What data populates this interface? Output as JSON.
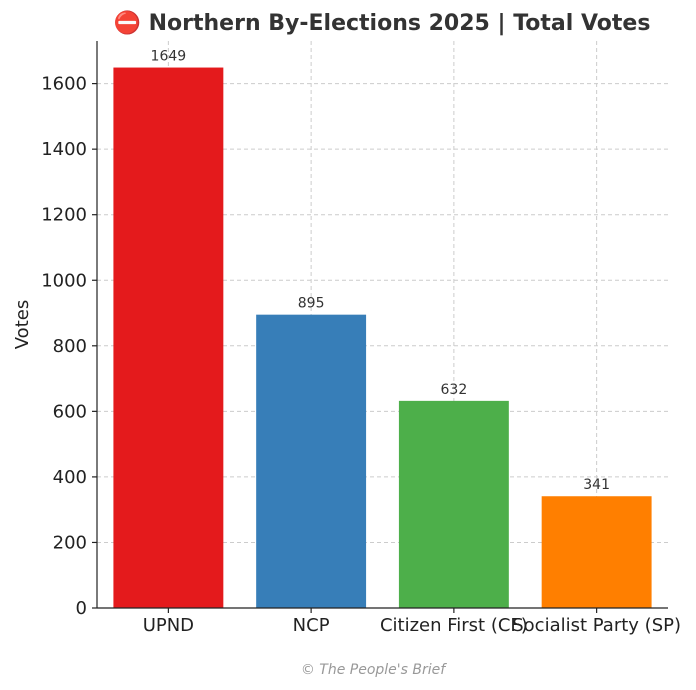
{
  "chart_data": {
    "type": "bar",
    "title": "⛔ Northern By-Elections 2025 | Total Votes",
    "xlabel": "",
    "ylabel": "Votes",
    "categories": [
      "UPND",
      "NCP",
      "Citizen First (CF)",
      "Socialist Party (SP)"
    ],
    "values": [
      1649,
      895,
      632,
      341
    ],
    "data_labels": [
      "1649",
      "895",
      "632",
      "341"
    ],
    "colors": [
      "#e41a1c",
      "#377eb8",
      "#4daf4a",
      "#ff7f00"
    ],
    "ylim": [
      0,
      1730
    ],
    "yticks": [
      0,
      200,
      400,
      600,
      800,
      1000,
      1200,
      1400,
      1600
    ],
    "grid": true,
    "legend": "none"
  },
  "footer": "© The People's Brief"
}
